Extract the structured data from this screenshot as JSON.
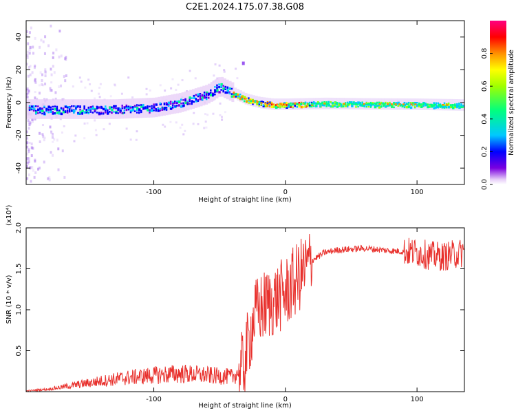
{
  "figure": {
    "title": "C2E1.2024.175.07.38.G08"
  },
  "chart_data": [
    {
      "type": "heatmap",
      "xlabel": "Height of straight line (km)",
      "ylabel": "Frequency (Hz)",
      "xlim": [
        -197,
        136
      ],
      "ylim": [
        -50,
        50
      ],
      "x_ticks": [
        -100,
        0,
        100
      ],
      "x_tick_labels": [
        "-100",
        "0",
        "100"
      ],
      "y_ticks": [
        -40,
        -20,
        0,
        20,
        40
      ],
      "y_tick_labels": [
        "-40",
        "-20",
        "0",
        "20",
        "40"
      ],
      "colorbar": {
        "label": "Normalized spectral amplitude",
        "range": [
          0,
          1
        ],
        "ticks": [
          0.0,
          0.2,
          0.4,
          0.6,
          0.8
        ],
        "tick_labels": [
          "0.0",
          "0.2",
          "0.4",
          "0.6",
          "0.8"
        ]
      },
      "ridge": {
        "description_points_x": [
          -195,
          -160,
          -130,
          -100,
          -80,
          -60,
          -50,
          -40,
          -30,
          -20,
          -10,
          0,
          30,
          60,
          100,
          136
        ],
        "frequency_hz": [
          -4,
          -4,
          -4,
          -3,
          0,
          5,
          10,
          6,
          2,
          0,
          -1,
          -1,
          -0.5,
          -0.8,
          -1,
          -1.5
        ]
      },
      "grid": false,
      "legend": "none"
    },
    {
      "type": "line",
      "xlabel": "Height of straight line (km)",
      "ylabel": "SNR (10 * v/v)",
      "y_scale_label": "(x10⁴)",
      "xlim": [
        -197,
        136
      ],
      "ylim": [
        0,
        2.0
      ],
      "x_ticks": [
        -100,
        0,
        100
      ],
      "x_tick_labels": [
        "-100",
        "0",
        "100"
      ],
      "y_ticks": [
        0.5,
        1.0,
        1.5,
        2.0
      ],
      "y_tick_labels": [
        "0.5",
        "1.0",
        "1.5",
        "2.0"
      ],
      "series": [
        {
          "color": "#e8302c",
          "x": [
            -197,
            -180,
            -160,
            -140,
            -120,
            -100,
            -80,
            -60,
            -40,
            -32,
            -28,
            -24,
            -20,
            -15,
            -10,
            -5,
            0,
            5,
            10,
            15,
            20,
            30,
            40,
            60,
            80,
            100,
            110,
            120,
            130,
            136
          ],
          "y": [
            0.01,
            0.03,
            0.08,
            0.13,
            0.17,
            0.2,
            0.22,
            0.2,
            0.18,
            0.3,
            0.6,
            0.9,
            1.0,
            1.05,
            1.1,
            1.15,
            1.2,
            1.3,
            1.4,
            1.5,
            1.6,
            1.7,
            1.73,
            1.75,
            1.72,
            1.7,
            1.66,
            1.65,
            1.68,
            1.7
          ]
        }
      ],
      "grid": false,
      "legend": "none"
    }
  ]
}
